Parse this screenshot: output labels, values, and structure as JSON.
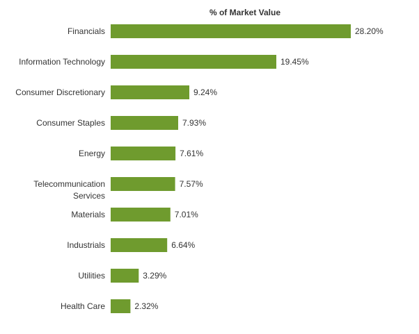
{
  "chart_data": {
    "type": "bar",
    "orientation": "horizontal",
    "title": "% of Market Value",
    "xlabel": "",
    "ylabel": "",
    "categories": [
      [
        "Financials"
      ],
      [
        "Information Technology"
      ],
      [
        "Consumer Discretionary"
      ],
      [
        "Consumer Staples"
      ],
      [
        "Energy"
      ],
      [
        "Telecommunication",
        "Services"
      ],
      [
        "Materials"
      ],
      [
        "Industrials"
      ],
      [
        "Utilities"
      ],
      [
        "Health Care"
      ]
    ],
    "values": [
      28.2,
      19.45,
      9.24,
      7.93,
      7.61,
      7.57,
      7.01,
      6.64,
      3.29,
      2.32
    ],
    "data_labels": [
      "28.20%",
      "19.45%",
      "9.24%",
      "7.93%",
      "7.61%",
      "7.57%",
      "7.01%",
      "6.64%",
      "3.29%",
      "2.32%"
    ],
    "xlim": [
      0,
      28.2
    ],
    "grid": false,
    "legend": "none",
    "bar_color": "#6f9b2e"
  }
}
